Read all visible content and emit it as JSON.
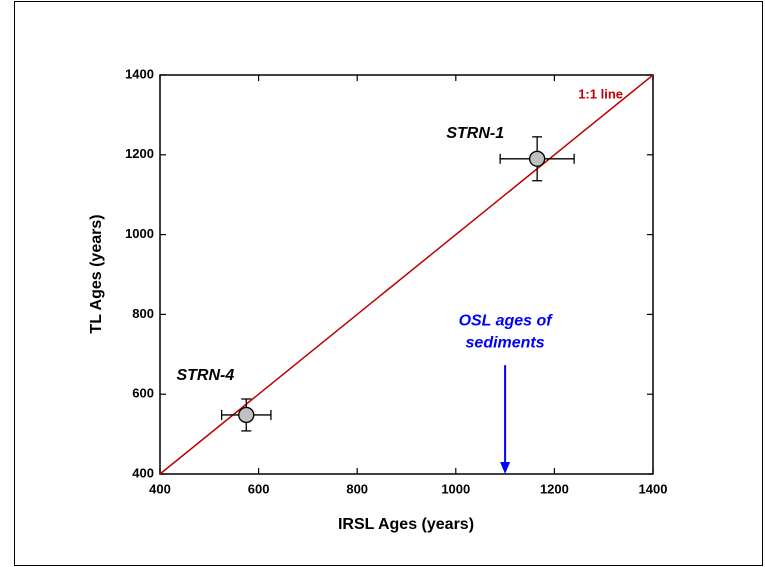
{
  "chart_data": {
    "type": "scatter",
    "xlabel": "IRSL  Ages (years)",
    "ylabel": "TL Ages (years)",
    "xlim": [
      400,
      1400
    ],
    "ylim": [
      400,
      1400
    ],
    "xticks": [
      400,
      600,
      800,
      1000,
      1200,
      1400
    ],
    "yticks": [
      400,
      600,
      800,
      1000,
      1200,
      1400
    ],
    "points": {
      "labels": [
        "STRN-4",
        "STRN-1"
      ],
      "x": [
        575,
        1165
      ],
      "values": [
        548,
        1190
      ],
      "x_err": [
        50,
        75
      ],
      "y_err": [
        40,
        55
      ],
      "color": "#c0c0c0"
    },
    "reference_line": {
      "name": "1:1 line",
      "x": [
        400,
        1400
      ],
      "values": [
        400,
        1400
      ],
      "color": "#c00000"
    },
    "annotation": {
      "text": [
        "OSL ages of",
        "sediments"
      ],
      "x": 1100,
      "y_start": 673,
      "y_end": 400,
      "color": "#0000ff"
    }
  }
}
